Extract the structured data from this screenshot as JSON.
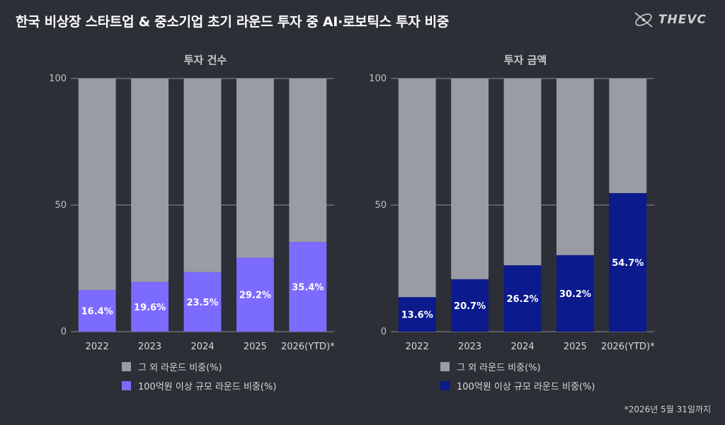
{
  "title": "한국 비상장 스타트업 & 중소기업 초기 라운드 투자 중 AI·로보틱스 투자 비중",
  "brand": {
    "name": "THEVC",
    "icon": "thevc-logo-icon"
  },
  "footnote": "*2026년 5월 31일까지",
  "colors": {
    "background": "#2c2f36",
    "other": "#9a9ca4",
    "count_highlight": "#7b6cff",
    "amount_highlight": "#0b1a8c",
    "grid": "#8a8d94"
  },
  "chart_data": [
    {
      "type": "bar",
      "stacked": true,
      "title": "투자 건수",
      "categories": [
        "2022",
        "2023",
        "2024",
        "2025",
        "2026(YTD)*"
      ],
      "ylim": [
        0,
        100
      ],
      "yticks": [
        "0",
        "50",
        "100"
      ],
      "series": [
        {
          "name": "100억원 이상 규모 라운드 비중(%)",
          "values": [
            16.4,
            19.6,
            23.5,
            29.2,
            35.4
          ],
          "labels": [
            "16.4%",
            "19.6%",
            "23.5%",
            "29.2%",
            "35.4%"
          ]
        },
        {
          "name": "그 외 라운드 비중(%)",
          "values": [
            83.6,
            80.4,
            76.5,
            70.8,
            64.6
          ]
        }
      ],
      "legend": [
        "그 외 라운드 비중(%)",
        "100억원 이상 규모 라운드 비중(%)"
      ]
    },
    {
      "type": "bar",
      "stacked": true,
      "title": "투자 금액",
      "categories": [
        "2022",
        "2023",
        "2024",
        "2025",
        "2026(YTD)*"
      ],
      "ylim": [
        0,
        100
      ],
      "yticks": [
        "0",
        "50",
        "100"
      ],
      "series": [
        {
          "name": "100억원 이상 규모 라운드 비중(%)",
          "values": [
            13.6,
            20.7,
            26.2,
            30.2,
            54.7
          ],
          "labels": [
            "13.6%",
            "20.7%",
            "26.2%",
            "30.2%",
            "54.7%"
          ]
        },
        {
          "name": "그 외 라운드 비중(%)",
          "values": [
            86.4,
            79.3,
            73.8,
            69.8,
            45.3
          ]
        }
      ],
      "legend": [
        "그 외 라운드 비중(%)",
        "100억원 이상 규모 라운드 비중(%)"
      ]
    }
  ]
}
